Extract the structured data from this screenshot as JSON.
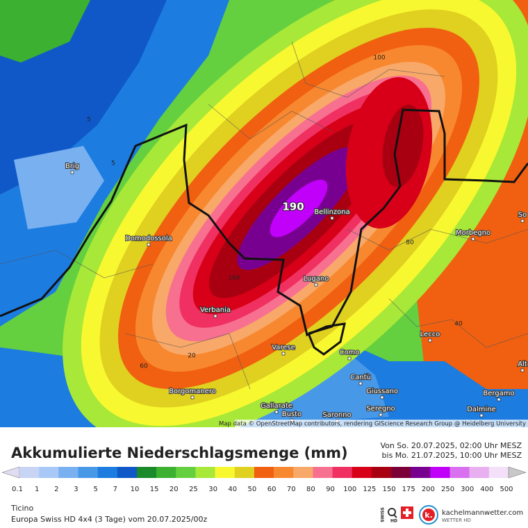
{
  "header": {
    "title": "Akkumulierte Niederschlagsmenge (mm)",
    "period_from": "Von So. 20.07.2025, 02:00 Uhr MESZ",
    "period_to": "bis Mo. 21.07.2025, 10:00 Uhr MESZ"
  },
  "legend": {
    "ticks": [
      0.1,
      1,
      2,
      3,
      5,
      7,
      10,
      15,
      20,
      25,
      30,
      40,
      50,
      60,
      70,
      80,
      90,
      100,
      125,
      150,
      175,
      200,
      250,
      300,
      400,
      500
    ],
    "colors": [
      "#e2dcf2",
      "#c8d4f4",
      "#a8c8f8",
      "#78b0f0",
      "#4898e8",
      "#1c7ce0",
      "#1058c8",
      "#1a8a2a",
      "#3cb030",
      "#64d040",
      "#a8e838",
      "#f8f830",
      "#e0d020",
      "#f06010",
      "#f88830",
      "#f8a868",
      "#f87090",
      "#f03060",
      "#d80018",
      "#a80010",
      "#7c0038",
      "#780090",
      "#c000f8",
      "#d870f0",
      "#e8b0f0",
      "#f4e0f8",
      "#c8c8c8"
    ]
  },
  "map": {
    "places": [
      "Brig",
      "Domodossola",
      "Bellinzona",
      "Verbania",
      "Lugano",
      "Varese",
      "Como",
      "Cantù",
      "Giussano",
      "Seregno",
      "Gallarate",
      "Busto",
      "Saronno",
      "Borgomanero",
      "Lecco",
      "Morbegno",
      "Bergamo",
      "Dalmine",
      "Alt",
      "So"
    ],
    "contour_labels": [
      190,
      100,
      80,
      40,
      60,
      20,
      5,
      5,
      160
    ],
    "attribution": "Map data © OpenStreetMap contributors, rendering GIScience Research Group @ Heidelberg University"
  },
  "footer": {
    "region": "Ticino",
    "model": "Europa Swiss HD 4x4 (3 Tage) vom  20.07.2025/00z",
    "badge_top": "SWISS",
    "badge_bottom": "HD",
    "brand": "kachelmannwetter.com",
    "brand_sub": "WETTER HD"
  }
}
